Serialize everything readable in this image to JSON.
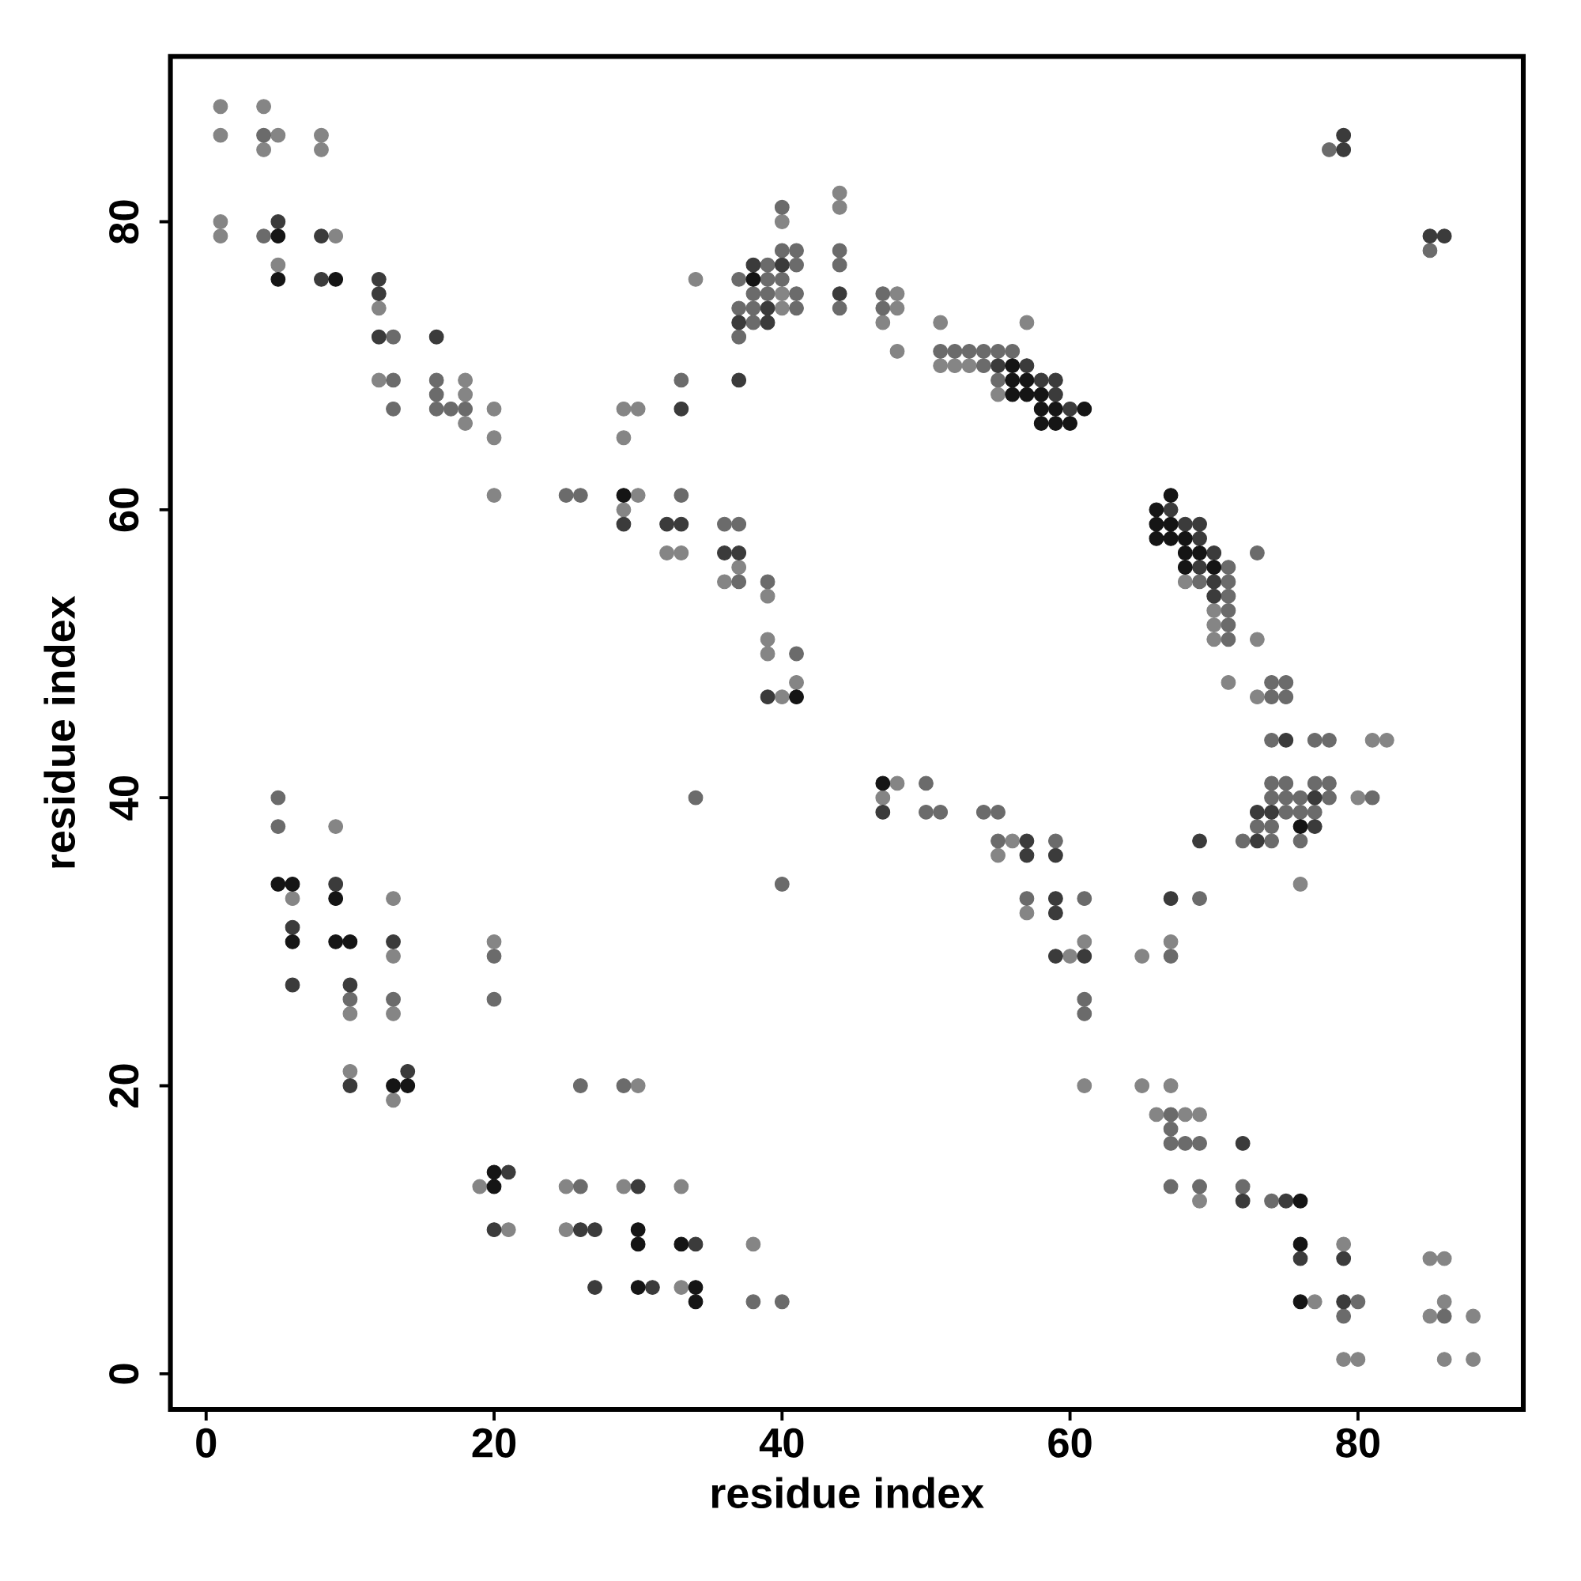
{
  "chart_data": {
    "type": "scatter",
    "xlabel": "residue index",
    "ylabel": "residue index",
    "xlim": [
      -2.48,
      91.48
    ],
    "ylim": [
      -2.48,
      91.48
    ],
    "xticks": [
      0,
      20,
      40,
      60,
      80
    ],
    "yticks": [
      0,
      20,
      40,
      60,
      80
    ],
    "marker": "circle",
    "series": [
      {
        "color": "#858585",
        "x": [
          1,
          1,
          1,
          1,
          4,
          4,
          5,
          5,
          6,
          8,
          8,
          9,
          9,
          10,
          10,
          12,
          12,
          13,
          13,
          13,
          13,
          18,
          18,
          18,
          19,
          20,
          20,
          20,
          20,
          21,
          25,
          25,
          29,
          29,
          29,
          29,
          30,
          30,
          30,
          32,
          33,
          33,
          33,
          34,
          36,
          37,
          38,
          39,
          39,
          39,
          40,
          40,
          40,
          40,
          41,
          44,
          44,
          47,
          47,
          48,
          48,
          48,
          48,
          51,
          51,
          52,
          53,
          55,
          55,
          56,
          57,
          57,
          60,
          61,
          61,
          65,
          65,
          66,
          67,
          67,
          68,
          68,
          69,
          69,
          70,
          70,
          70,
          71,
          73,
          73,
          76,
          77,
          79,
          79,
          80,
          80,
          81,
          82,
          85,
          85,
          86,
          86,
          86,
          88,
          88
        ],
        "values": [
          88,
          86,
          80,
          79,
          88,
          85,
          86,
          77,
          33,
          86,
          85,
          79,
          38,
          25,
          21,
          74,
          69,
          33,
          29,
          25,
          19,
          69,
          68,
          66,
          13,
          67,
          65,
          61,
          30,
          10,
          13,
          10,
          67,
          65,
          60,
          13,
          67,
          61,
          20,
          57,
          57,
          13,
          6,
          76,
          55,
          56,
          9,
          54,
          51,
          50,
          80,
          75,
          74,
          47,
          48,
          82,
          81,
          73,
          40,
          75,
          74,
          71,
          41,
          73,
          70,
          70,
          70,
          68,
          36,
          37,
          73,
          32,
          29,
          30,
          20,
          29,
          20,
          18,
          30,
          20,
          55,
          18,
          18,
          12,
          53,
          52,
          51,
          48,
          51,
          47,
          34,
          5,
          9,
          1,
          40,
          1,
          44,
          44,
          8,
          4,
          8,
          5,
          1,
          4,
          1
        ]
      },
      {
        "color": "#6b6b6b",
        "x": [
          4,
          4,
          5,
          5,
          10,
          13,
          13,
          13,
          13,
          16,
          16,
          16,
          17,
          18,
          20,
          20,
          25,
          26,
          26,
          26,
          29,
          33,
          33,
          34,
          36,
          37,
          37,
          37,
          37,
          37,
          38,
          38,
          38,
          38,
          39,
          39,
          39,
          39,
          40,
          40,
          40,
          40,
          40,
          41,
          41,
          41,
          41,
          41,
          44,
          44,
          44,
          47,
          47,
          50,
          50,
          51,
          51,
          52,
          53,
          54,
          54,
          54,
          55,
          55,
          55,
          55,
          56,
          57,
          59,
          61,
          61,
          61,
          67,
          67,
          67,
          67,
          67,
          68,
          69,
          69,
          69,
          69,
          71,
          71,
          71,
          71,
          71,
          71,
          72,
          72,
          73,
          73,
          74,
          74,
          74,
          74,
          74,
          74,
          74,
          74,
          75,
          75,
          75,
          75,
          75,
          76,
          76,
          76,
          77,
          77,
          77,
          78,
          78,
          78,
          78,
          79,
          80,
          81,
          85,
          86
        ],
        "values": [
          86,
          79,
          40,
          38,
          26,
          72,
          69,
          67,
          26,
          69,
          68,
          67,
          67,
          67,
          29,
          26,
          61,
          61,
          20,
          13,
          20,
          69,
          61,
          40,
          59,
          76,
          74,
          72,
          59,
          55,
          75,
          74,
          73,
          5,
          77,
          76,
          75,
          55,
          81,
          78,
          76,
          34,
          5,
          78,
          77,
          75,
          74,
          50,
          78,
          77,
          74,
          75,
          74,
          41,
          39,
          71,
          39,
          71,
          71,
          71,
          70,
          39,
          71,
          69,
          39,
          37,
          71,
          33,
          37,
          33,
          26,
          25,
          29,
          18,
          17,
          16,
          13,
          16,
          55,
          33,
          16,
          13,
          56,
          55,
          54,
          53,
          52,
          51,
          37,
          13,
          57,
          38,
          48,
          47,
          44,
          41,
          40,
          38,
          37,
          12,
          48,
          47,
          41,
          40,
          39,
          40,
          39,
          37,
          44,
          41,
          39,
          85,
          44,
          41,
          40,
          4,
          5,
          40,
          78,
          4
        ]
      },
      {
        "color": "#3b3b3b",
        "x": [
          5,
          6,
          6,
          8,
          8,
          9,
          10,
          10,
          12,
          12,
          12,
          13,
          14,
          16,
          20,
          21,
          26,
          27,
          27,
          29,
          30,
          31,
          32,
          33,
          33,
          34,
          36,
          37,
          37,
          37,
          38,
          39,
          39,
          39,
          40,
          44,
          47,
          55,
          57,
          57,
          57,
          58,
          59,
          59,
          59,
          59,
          59,
          59,
          60,
          61,
          67,
          67,
          68,
          69,
          69,
          69,
          69,
          70,
          70,
          70,
          72,
          72,
          73,
          73,
          74,
          75,
          75,
          76,
          77,
          77,
          79,
          79,
          79,
          79,
          85,
          86
        ],
        "values": [
          80,
          31,
          27,
          79,
          76,
          34,
          27,
          20,
          76,
          75,
          72,
          30,
          21,
          72,
          10,
          14,
          10,
          10,
          6,
          59,
          13,
          6,
          59,
          67,
          59,
          9,
          57,
          73,
          69,
          57,
          77,
          74,
          73,
          47,
          77,
          75,
          39,
          70,
          70,
          37,
          36,
          69,
          69,
          68,
          36,
          33,
          32,
          29,
          67,
          29,
          60,
          33,
          59,
          59,
          58,
          56,
          37,
          57,
          55,
          54,
          16,
          12,
          39,
          37,
          39,
          44,
          12,
          8,
          40,
          38,
          86,
          85,
          8,
          5,
          79,
          79
        ]
      },
      {
        "color": "#151515",
        "x": [
          5,
          5,
          5,
          6,
          6,
          9,
          9,
          9,
          10,
          13,
          14,
          20,
          20,
          29,
          30,
          30,
          30,
          33,
          34,
          34,
          38,
          41,
          47,
          56,
          56,
          56,
          57,
          57,
          58,
          58,
          58,
          59,
          59,
          60,
          61,
          66,
          66,
          66,
          67,
          67,
          67,
          68,
          68,
          68,
          69,
          70,
          76,
          76,
          76,
          76
        ],
        "values": [
          79,
          76,
          34,
          34,
          30,
          76,
          33,
          30,
          30,
          20,
          20,
          14,
          13,
          61,
          10,
          9,
          6,
          9,
          6,
          5,
          76,
          47,
          41,
          70,
          69,
          68,
          69,
          68,
          68,
          67,
          66,
          67,
          66,
          66,
          67,
          60,
          59,
          58,
          61,
          59,
          58,
          58,
          57,
          56,
          57,
          56,
          38,
          12,
          9,
          5
        ]
      }
    ]
  }
}
